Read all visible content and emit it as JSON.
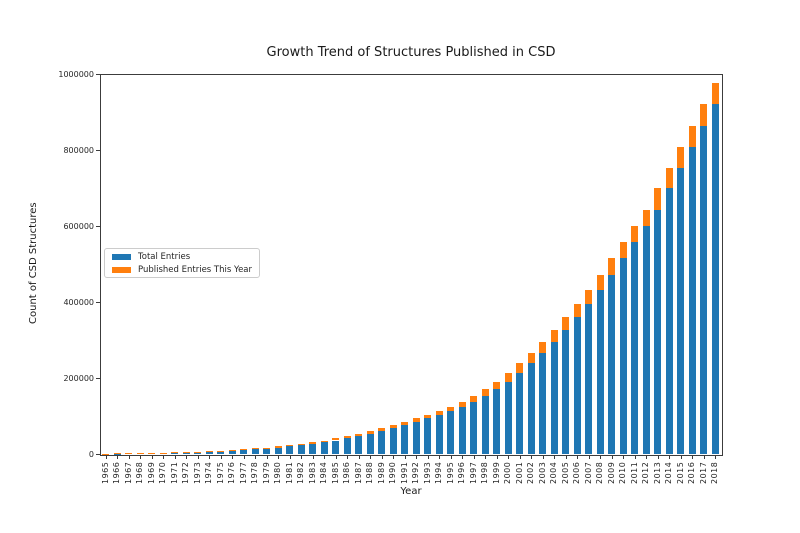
{
  "title": "Growth Trend of Structures Published in CSD",
  "colors": {
    "total_series": "#1f77b4",
    "published_series": "#ff7f0e",
    "spine": "#3c3c3c",
    "background": "#ffffff",
    "legend_border": "#cccccc"
  },
  "chart_data": {
    "type": "bar",
    "stacked": true,
    "title": "Growth Trend of Structures Published in CSD",
    "xlabel": "Year",
    "ylabel": "Count of CSD Structures",
    "ylim": [
      0,
      1000000
    ],
    "yticks": [
      0,
      200000,
      400000,
      600000,
      800000,
      1000000
    ],
    "grid": false,
    "legend_position": "center-left",
    "categories": [
      1965,
      1966,
      1967,
      1968,
      1969,
      1970,
      1971,
      1972,
      1973,
      1974,
      1975,
      1976,
      1977,
      1978,
      1979,
      1980,
      1981,
      1982,
      1983,
      1984,
      1985,
      1986,
      1987,
      1988,
      1989,
      1990,
      1991,
      1992,
      1993,
      1994,
      1995,
      1996,
      1997,
      1998,
      1999,
      2000,
      2001,
      2002,
      2003,
      2004,
      2005,
      2006,
      2007,
      2008,
      2009,
      2010,
      2011,
      2012,
      2013,
      2014,
      2015,
      2016,
      2017,
      2018
    ],
    "series": [
      {
        "name": "Total Entries",
        "color": "#1f77b4",
        "values": [
          500,
          1000,
          1400,
          1900,
          2400,
          3000,
          3700,
          4500,
          5400,
          6500,
          7700,
          9100,
          10700,
          12500,
          14600,
          17000,
          19800,
          23000,
          26600,
          30800,
          35500,
          41000,
          47000,
          53000,
          60000,
          67600,
          76300,
          84300,
          93800,
          102600,
          113600,
          123300,
          137300,
          152800,
          169800,
          189800,
          213800,
          239800,
          266800,
          295800,
          325800,
          360800,
          394800,
          430800,
          470800,
          514800,
          558800,
          599800,
          641800,
          698800,
          751800,
          807800,
          863800,
          921800
        ]
      },
      {
        "name": "Published Entries This Year",
        "color": "#ff7f0e",
        "values": [
          500,
          400,
          500,
          500,
          600,
          700,
          800,
          900,
          1100,
          1200,
          1400,
          1600,
          1800,
          2100,
          2400,
          2800,
          3200,
          3600,
          4200,
          4700,
          5500,
          6000,
          6000,
          7000,
          7600,
          8700,
          8000,
          9500,
          8800,
          11000,
          9700,
          14000,
          15500,
          17000,
          20000,
          24000,
          26000,
          27000,
          29000,
          30000,
          35000,
          34000,
          36000,
          40000,
          44000,
          44000,
          41000,
          42000,
          57000,
          53000,
          56000,
          56000,
          58000,
          55000
        ]
      }
    ]
  }
}
